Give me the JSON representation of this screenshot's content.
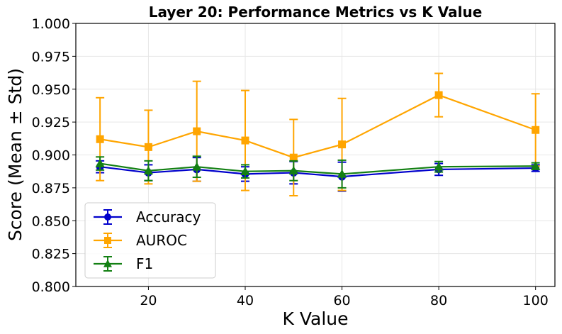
{
  "chart_data": {
    "type": "line",
    "title": "Layer 20: Performance Metrics vs K Value",
    "xlabel": "K Value",
    "ylabel": "Score (Mean ± Std)",
    "x": [
      10,
      20,
      30,
      40,
      50,
      60,
      80,
      100
    ],
    "xlim": [
      5,
      104
    ],
    "ylim": [
      0.8,
      1.0
    ],
    "xticks": [
      20,
      40,
      60,
      80,
      100
    ],
    "yticks": [
      0.8,
      0.825,
      0.85,
      0.875,
      0.9,
      0.925,
      0.95,
      0.975,
      1.0
    ],
    "grid": true,
    "legend_position": "lower-left",
    "series": [
      {
        "name": "Accuracy",
        "color": "#0000cc",
        "marker": "circle",
        "values": [
          0.891,
          0.8865,
          0.889,
          0.8855,
          0.8865,
          0.8835,
          0.889,
          0.89
        ],
        "errors": [
          0.0045,
          0.006,
          0.009,
          0.0055,
          0.0085,
          0.011,
          0.0045,
          0.0025
        ]
      },
      {
        "name": "AUROC",
        "color": "#ffa500",
        "marker": "square",
        "values": [
          0.912,
          0.906,
          0.918,
          0.911,
          0.898,
          0.908,
          0.9455,
          0.919
        ],
        "errors": [
          0.0315,
          0.028,
          0.038,
          0.038,
          0.029,
          0.035,
          0.0165,
          0.0275
        ]
      },
      {
        "name": "F1",
        "color": "#138013",
        "marker": "triangle",
        "values": [
          0.8935,
          0.888,
          0.891,
          0.8875,
          0.888,
          0.8855,
          0.891,
          0.8915
        ],
        "errors": [
          0.005,
          0.0075,
          0.008,
          0.005,
          0.0075,
          0.0105,
          0.004,
          0.0025
        ]
      }
    ]
  }
}
